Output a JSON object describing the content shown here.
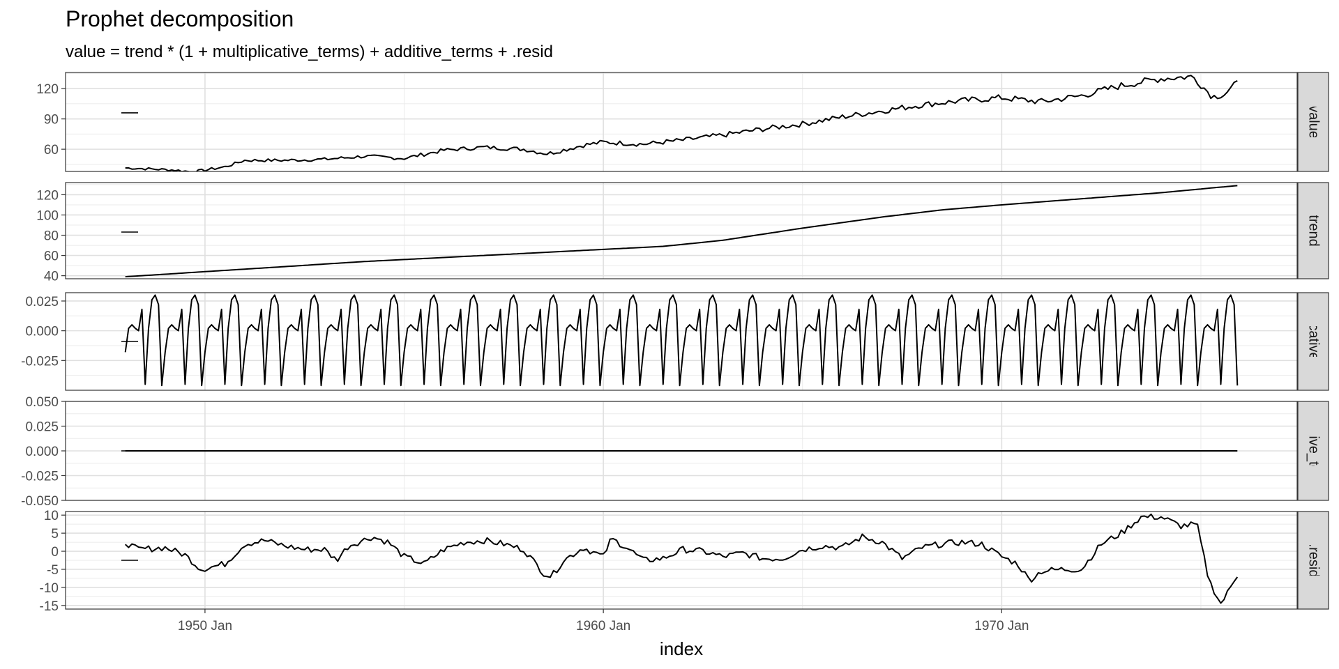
{
  "chart_data": {
    "type": "line",
    "title": "Prophet decomposition",
    "subtitle": "value = trend * (1 + multiplicative_terms) + additive_terms + .resid",
    "xlabel": "index",
    "x_start": "1948-01",
    "x_end": "1975-12",
    "frequency": "monthly",
    "xlim": [
      "1946-07",
      "1977-06"
    ],
    "x_ticks": [
      {
        "label": "1950 Jan",
        "date": "1950-01"
      },
      {
        "label": "1960 Jan",
        "date": "1960-01"
      },
      {
        "label": "1970 Jan",
        "date": "1970-01"
      }
    ],
    "grid": true,
    "facets": [
      {
        "name": "value",
        "ylim": [
          38,
          136
        ],
        "y_ticks": [
          60,
          90,
          120
        ],
        "anchors": [
          [
            1948.0,
            41.5
          ],
          [
            1949.2,
            39.5
          ],
          [
            1949.7,
            37.5
          ],
          [
            1950.5,
            42.5
          ],
          [
            1951.0,
            49
          ],
          [
            1952.0,
            49
          ],
          [
            1953.0,
            50
          ],
          [
            1954.0,
            53
          ],
          [
            1955.0,
            51
          ],
          [
            1956.0,
            59
          ],
          [
            1957.0,
            62
          ],
          [
            1958.0,
            60
          ],
          [
            1958.6,
            55.5
          ],
          [
            1959.5,
            64
          ],
          [
            1960.0,
            67
          ],
          [
            1961.0,
            65
          ],
          [
            1962.0,
            69
          ],
          [
            1963.0,
            74
          ],
          [
            1964.0,
            80
          ],
          [
            1965.0,
            85
          ],
          [
            1966.0,
            92
          ],
          [
            1967.0,
            98
          ],
          [
            1968.0,
            104
          ],
          [
            1969.0,
            108
          ],
          [
            1970.0,
            111
          ],
          [
            1971.0,
            107
          ],
          [
            1972.0,
            113
          ],
          [
            1973.0,
            123
          ],
          [
            1974.0,
            130
          ],
          [
            1974.8,
            132
          ],
          [
            1975.3,
            112
          ],
          [
            1975.6,
            115
          ],
          [
            1975.9,
            125
          ]
        ],
        "noise": 2.5
      },
      {
        "name": "trend",
        "ylim": [
          37,
          132
        ],
        "y_ticks": [
          40,
          60,
          80,
          100,
          120
        ],
        "anchors": [
          [
            1948.0,
            39
          ],
          [
            1950.0,
            44
          ],
          [
            1952.0,
            49
          ],
          [
            1954.0,
            54
          ],
          [
            1956.0,
            58
          ],
          [
            1958.0,
            62
          ],
          [
            1960.0,
            66
          ],
          [
            1961.5,
            69
          ],
          [
            1963.0,
            75
          ],
          [
            1965.0,
            87
          ],
          [
            1967.0,
            98
          ],
          [
            1968.5,
            105
          ],
          [
            1970.0,
            110
          ],
          [
            1972.0,
            116
          ],
          [
            1974.0,
            122
          ],
          [
            1975.9,
            129
          ]
        ],
        "noise": 0
      },
      {
        "name": "multiplicative_terms",
        "ylim": [
          -0.05,
          0.032
        ],
        "y_ticks": [
          -0.025,
          0.0,
          0.025
        ],
        "seasonal_pattern": [
          -0.018,
          0.002,
          0.005,
          0.002,
          0.0,
          0.018,
          -0.045,
          0.002,
          0.026,
          0.03,
          0.022,
          -0.046
        ],
        "noise": 0
      },
      {
        "name": "additive_terms",
        "ylim": [
          -0.05,
          0.05
        ],
        "y_ticks": [
          -0.05,
          -0.025,
          0.0,
          0.025,
          0.05
        ],
        "constant": 0.0
      },
      {
        "name": ".resid",
        "ylim": [
          -16,
          11
        ],
        "y_ticks": [
          -15,
          -10,
          -5,
          0,
          5,
          10
        ],
        "anchors": [
          [
            1948.0,
            2.5
          ],
          [
            1948.3,
            0.5
          ],
          [
            1949.0,
            1.0
          ],
          [
            1949.5,
            -1.0
          ],
          [
            1949.9,
            -5.0
          ],
          [
            1950.5,
            -3.5
          ],
          [
            1951.0,
            2.0
          ],
          [
            1951.5,
            3.0
          ],
          [
            1952.0,
            1.5
          ],
          [
            1952.5,
            0.5
          ],
          [
            1953.0,
            0.5
          ],
          [
            1953.3,
            -2.5
          ],
          [
            1953.6,
            1.5
          ],
          [
            1954.2,
            4.0
          ],
          [
            1954.6,
            2.5
          ],
          [
            1955.0,
            -1.5
          ],
          [
            1955.5,
            -3.5
          ],
          [
            1956.0,
            0.5
          ],
          [
            1956.5,
            2.5
          ],
          [
            1957.0,
            3.0
          ],
          [
            1957.5,
            2.0
          ],
          [
            1958.0,
            0.5
          ],
          [
            1958.5,
            -6.0
          ],
          [
            1958.7,
            -7.0
          ],
          [
            1959.0,
            -2.5
          ],
          [
            1959.5,
            1.0
          ],
          [
            1960.0,
            -1.5
          ],
          [
            1960.2,
            3.5
          ],
          [
            1960.6,
            1.0
          ],
          [
            1961.0,
            -2.5
          ],
          [
            1961.5,
            -2.0
          ],
          [
            1962.0,
            0.5
          ],
          [
            1962.5,
            0.0
          ],
          [
            1963.0,
            -1.5
          ],
          [
            1963.5,
            -0.5
          ],
          [
            1964.0,
            -2.0
          ],
          [
            1964.5,
            -2.0
          ],
          [
            1965.0,
            0.5
          ],
          [
            1965.5,
            1.5
          ],
          [
            1966.0,
            1.0
          ],
          [
            1966.5,
            4.0
          ],
          [
            1967.0,
            2.5
          ],
          [
            1967.5,
            -2.0
          ],
          [
            1968.0,
            1.0
          ],
          [
            1968.5,
            2.0
          ],
          [
            1969.0,
            2.5
          ],
          [
            1969.5,
            2.0
          ],
          [
            1970.0,
            -1.5
          ],
          [
            1970.4,
            -3.5
          ],
          [
            1970.7,
            -8.0
          ],
          [
            1971.0,
            -5.5
          ],
          [
            1971.5,
            -5.0
          ],
          [
            1972.0,
            -5.0
          ],
          [
            1972.5,
            2.0
          ],
          [
            1973.0,
            5.0
          ],
          [
            1973.5,
            9.5
          ],
          [
            1974.0,
            9.5
          ],
          [
            1974.5,
            7.0
          ],
          [
            1974.9,
            7.5
          ],
          [
            1975.2,
            -8.0
          ],
          [
            1975.5,
            -14.5
          ],
          [
            1975.7,
            -11.0
          ],
          [
            1975.9,
            -6.5
          ]
        ],
        "noise": 0.9
      }
    ]
  }
}
